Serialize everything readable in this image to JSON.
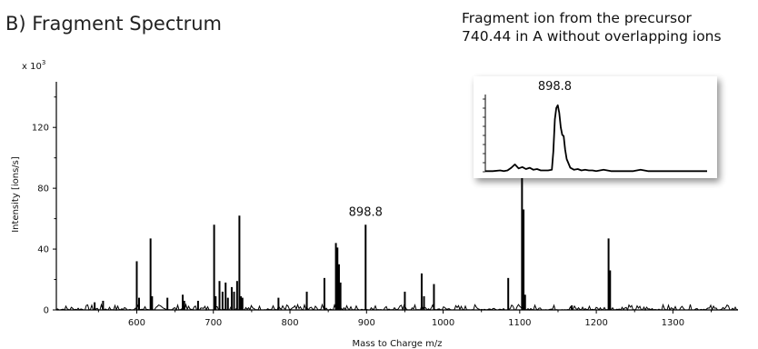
{
  "panel_title": "B)  Fragment Spectrum",
  "inset_note": {
    "line1": "Fragment ion from the precursor",
    "line2": "740.44 in A without overlapping ions"
  },
  "chart_data": [
    {
      "type": "bar",
      "title": "",
      "xlabel": "Mass to Charge m/z",
      "ylabel": "Intensity [ions/s]",
      "y_multiplier": "x 10",
      "y_multiplier_exp": "3",
      "xlim": [
        495,
        1385
      ],
      "ylim": [
        0,
        150
      ],
      "xticks": [
        600,
        700,
        800,
        900,
        1000,
        1100,
        1200,
        1300
      ],
      "yticks": [
        0,
        40,
        80,
        120
      ],
      "grid": false,
      "annotations": [
        {
          "x": 898.8,
          "y": 56,
          "text": "898.8"
        }
      ],
      "x": [
        545,
        556,
        600,
        603,
        618,
        620,
        640,
        660,
        662,
        680,
        701,
        703,
        708,
        712,
        716,
        719,
        724,
        727,
        731,
        734,
        736,
        738,
        785,
        822,
        845,
        860,
        862,
        864,
        866,
        898.8,
        950,
        972,
        975,
        988,
        1085,
        1103,
        1105,
        1107,
        1168,
        1216,
        1218
      ],
      "values": [
        5,
        6,
        32,
        8,
        47,
        9,
        8,
        10,
        6,
        6,
        56,
        9,
        19,
        12,
        18,
        8,
        15,
        12,
        19,
        62,
        9,
        8,
        8,
        12,
        21,
        44,
        41,
        30,
        18,
        56,
        12,
        24,
        9,
        17,
        21,
        89,
        66,
        10,
        3,
        47,
        26
      ]
    },
    {
      "type": "line",
      "title": "",
      "annotations": [
        {
          "x": 898.8,
          "y": 100,
          "text": "898.8"
        }
      ],
      "x": [
        880,
        882,
        884,
        885,
        886,
        887,
        888,
        889,
        890,
        891,
        892,
        893,
        894,
        895,
        896,
        897,
        898,
        898.4,
        898.8,
        899.2,
        899.6,
        900,
        900.4,
        900.8,
        901.2,
        901.6,
        902,
        903,
        904,
        905,
        906,
        907,
        908,
        909,
        910,
        912,
        914,
        916,
        918,
        920,
        922,
        924,
        926,
        928,
        930,
        935,
        940
      ],
      "values": [
        1,
        1,
        2,
        1,
        2,
        6,
        11,
        5,
        7,
        4,
        6,
        3,
        4,
        2,
        2,
        2,
        3,
        30,
        78,
        95,
        99,
        88,
        66,
        55,
        53,
        33,
        19,
        6,
        3,
        4,
        2,
        3,
        2,
        2,
        1,
        3,
        1,
        1,
        1,
        1,
        3,
        1,
        1,
        1,
        1,
        1,
        1
      ],
      "xlim": [
        880,
        940
      ],
      "ylim": [
        0,
        115
      ]
    }
  ]
}
